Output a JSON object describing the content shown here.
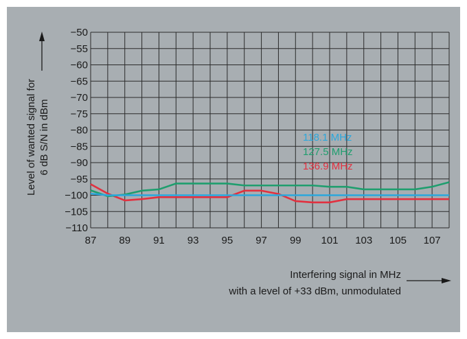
{
  "chart_data": {
    "type": "line",
    "x_ticks": [
      87,
      89,
      91,
      93,
      95,
      97,
      99,
      101,
      103,
      105,
      107
    ],
    "y_ticks": [
      -50,
      -55,
      -60,
      -65,
      -70,
      -75,
      -80,
      -85,
      -90,
      -95,
      -100,
      -105,
      -110
    ],
    "y_tick_labels": [
      "−50",
      "−55",
      "−60",
      "−65",
      "−70",
      "−75",
      "−80",
      "−85",
      "−90",
      "−95",
      "−100",
      "−105",
      "−110"
    ],
    "xlim": [
      87,
      108
    ],
    "ylim": [
      -110,
      -50
    ],
    "grid": true,
    "ylabel_line1": "Level of wanted signal for",
    "ylabel_line2": "6 dB S/N in dBm",
    "xlabel_line1": "Interfering signal in MHz",
    "xlabel_line2": "with a level of +33 dBm, unmodulated",
    "legend_placement": "inside, center-right",
    "x": [
      87,
      88,
      89,
      90,
      91,
      92,
      93,
      94,
      95,
      96,
      97,
      98,
      99,
      100,
      101,
      102,
      103,
      104,
      105,
      106,
      107,
      108
    ],
    "series": [
      {
        "name": "118.1 MHz",
        "color": "#2ba7dc",
        "values": [
          -99.5,
          -100.0,
          -100.0,
          -100.0,
          -100.0,
          -100.0,
          -100.0,
          -100.0,
          -100.0,
          -100.0,
          -100.0,
          -100.0,
          -100.0,
          -100.0,
          -100.0,
          -100.0,
          -100.0,
          -100.0,
          -100.0,
          -100.0,
          -100.0,
          -100.0
        ]
      },
      {
        "name": "127.5 MHz",
        "color": "#1e9e6e",
        "values": [
          -98.5,
          -100.3,
          -99.8,
          -98.6,
          -98.2,
          -96.4,
          -96.4,
          -96.4,
          -96.4,
          -97.0,
          -97.0,
          -97.0,
          -97.0,
          -97.0,
          -97.4,
          -97.4,
          -98.2,
          -98.2,
          -98.2,
          -98.2,
          -97.4,
          -96.0
        ]
      },
      {
        "name": "136.9 MHz",
        "color": "#e2303f",
        "values": [
          -96.6,
          -99.5,
          -101.6,
          -101.2,
          -100.6,
          -100.6,
          -100.6,
          -100.6,
          -100.6,
          -98.6,
          -98.6,
          -99.6,
          -101.8,
          -102.2,
          -102.2,
          -101.2,
          -101.2,
          -101.2,
          -101.2,
          -101.2,
          -101.2,
          -101.2
        ]
      }
    ]
  },
  "colors": {
    "background": "#a8aeb2",
    "grid": "#2a2a2a",
    "text": "#1a1a1a"
  }
}
